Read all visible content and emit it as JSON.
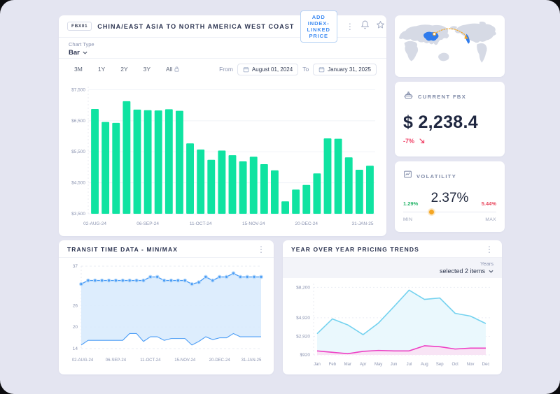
{
  "header": {
    "badge": "FBX01",
    "title": "CHINA/EAST ASIA TO NORTH AMERICA WEST COAST",
    "add_button": "ADD INDEX-LINKED PRICE",
    "icons": [
      "kebab-menu",
      "bell",
      "star"
    ]
  },
  "controls": {
    "chart_type_label": "Chart Type",
    "chart_type_value": "Bar",
    "ranges": [
      "3M",
      "1Y",
      "2Y",
      "3Y",
      "All"
    ],
    "from_label": "From",
    "from_value": "August 01, 2024",
    "to_label": "To",
    "to_value": "January 31, 2025"
  },
  "current_fbx": {
    "label": "CURRENT FBX",
    "value": "$ 2,238.4",
    "change": "-7%",
    "trend": "down"
  },
  "volatility": {
    "label": "VOLATILITY",
    "value": "2.37%",
    "min": "1.29%",
    "max": "5.44%",
    "min_label": "MIN",
    "max_label": "MAX",
    "indicator_position_pct": 28
  },
  "transit": {
    "title": "TRANSIT TIME DATA - MIN/MAX"
  },
  "yoy": {
    "title": "YEAR OVER YEAR PRICING TRENDS",
    "years_label": "Years",
    "years_value": "selected 2 items"
  },
  "map": {
    "origin": "China/East Asia",
    "destination": "North America West Coast"
  },
  "chart_data": [
    {
      "id": "fbx-bar",
      "type": "bar",
      "title": "FBX01 weekly index price",
      "values": [
        6880,
        6460,
        6430,
        7130,
        6860,
        6840,
        6830,
        6870,
        6820,
        5770,
        5570,
        5240,
        5540,
        5390,
        5190,
        5340,
        5100,
        4900,
        3900,
        4280,
        4430,
        4800,
        5930,
        5920,
        5320,
        4920,
        5050
      ],
      "x_tick_labels": [
        "02-AUG-24",
        "06-SEP-24",
        "11-OCT-24",
        "15-NOV-24",
        "20-DEC-24",
        "31-JAN-25"
      ],
      "x_tick_indices": [
        0,
        5,
        10,
        15,
        20,
        26
      ],
      "y_ticks": [
        3500,
        4500,
        5500,
        6500,
        7500
      ],
      "y_tick_labels": [
        "$3,500",
        "$4,500",
        "$5,500",
        "$6,500",
        "$7,500"
      ],
      "ylim": [
        3500,
        7600
      ],
      "bar_color": "#0fe3a1",
      "grid": true
    },
    {
      "id": "transit-minmax",
      "type": "line",
      "title": "Transit time min/max (days)",
      "series": [
        {
          "name": "max",
          "markers": true,
          "values": [
            32,
            33,
            33,
            33,
            33,
            33,
            33,
            33,
            33,
            33,
            34,
            34,
            33,
            33,
            33,
            33,
            32,
            32.5,
            34,
            33,
            34,
            34,
            35,
            34,
            34,
            34,
            34
          ]
        },
        {
          "name": "min",
          "markers": false,
          "values": [
            15,
            16.3,
            16.3,
            16.3,
            16.3,
            16.3,
            16.3,
            18.2,
            18.2,
            16,
            17.3,
            17.3,
            16.3,
            16.8,
            16.8,
            16.8,
            15,
            16,
            17.3,
            16.5,
            17,
            17,
            18.2,
            17.3,
            17.3,
            17.3,
            17.3
          ]
        }
      ],
      "fill_between": true,
      "x_tick_labels": [
        "02-AUG-24",
        "06-SEP-24",
        "11-OCT-24",
        "15-NOV-24",
        "20-DEC-24",
        "31-JAN-25"
      ],
      "x_tick_indices": [
        0,
        5,
        10,
        15,
        20,
        26
      ],
      "y_ticks": [
        14,
        20,
        26,
        37
      ],
      "ylim": [
        14,
        37
      ],
      "line_color": "#4d9ef6",
      "fill_color": "#d9ebfd",
      "grid": true
    },
    {
      "id": "yoy-trends",
      "type": "area",
      "title": "Year over year pricing trends",
      "categories": [
        "Jan",
        "Feb",
        "Mar",
        "Apr",
        "May",
        "Jun",
        "Jul",
        "Aug",
        "Sep",
        "Oct",
        "Nov",
        "Dec"
      ],
      "series": [
        {
          "name": "year-A",
          "color": "#74d2ef",
          "fill": "#e9f8fd",
          "values": [
            3200,
            4800,
            4150,
            3100,
            4350,
            6100,
            7900,
            6900,
            7050,
            5400,
            5100,
            4300
          ]
        },
        {
          "name": "year-B",
          "color": "#ee3fc4",
          "fill": "#f9e3f4",
          "values": [
            1350,
            1200,
            1050,
            1300,
            1400,
            1350,
            1350,
            1900,
            1800,
            1550,
            1650,
            1650
          ]
        }
      ],
      "y_ticks": [
        920,
        2920,
        4920,
        8200
      ],
      "y_tick_labels": [
        "$920",
        "$2,920",
        "$4,920",
        "$8,200"
      ],
      "ylim": [
        920,
        8600
      ],
      "grid": true,
      "legend": "none"
    }
  ],
  "colors": {
    "bar_green": "#0fe3a1",
    "accent_blue": "#3f8cf3",
    "negative_red": "#f0476b",
    "positive_green": "#27b56a",
    "indicator_orange": "#f5a623",
    "map_land_gray": "#d6dae5",
    "map_highlight_blue": "#2f7bec",
    "route_orange": "#f5a623",
    "page_background": "#e4e5f1"
  }
}
